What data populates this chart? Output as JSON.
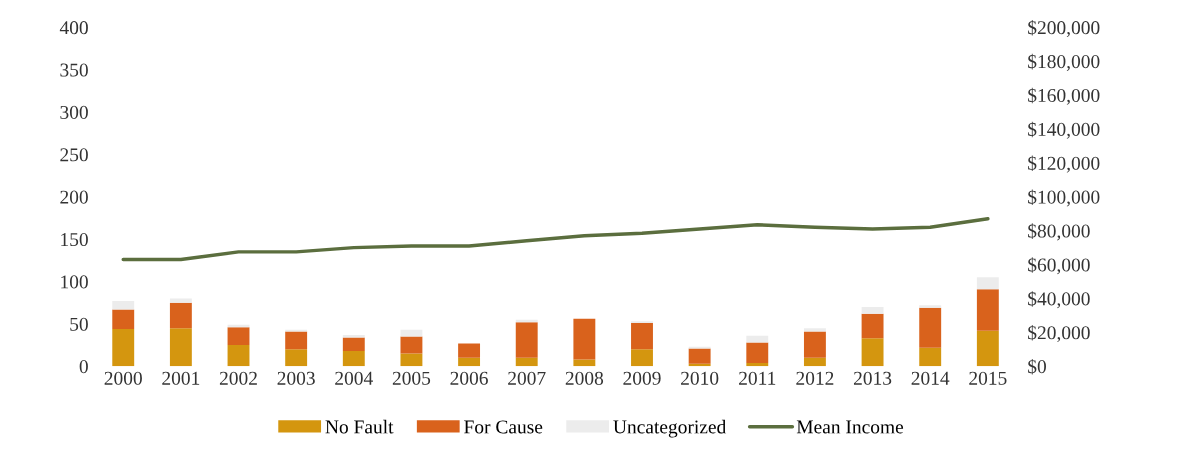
{
  "chart_data": {
    "type": "bar",
    "stacked": true,
    "categories": [
      "2000",
      "2001",
      "2002",
      "2003",
      "2004",
      "2005",
      "2006",
      "2007",
      "2008",
      "2009",
      "2010",
      "2011",
      "2012",
      "2013",
      "2014",
      "2015"
    ],
    "series": [
      {
        "name": "No Fault",
        "color": "#d4960f",
        "values": [
          44,
          45,
          25,
          20,
          18,
          15,
          10,
          10,
          8,
          20,
          3,
          4,
          10,
          33,
          22,
          42
        ]
      },
      {
        "name": "For Cause",
        "color": "#d9621c",
        "values": [
          23,
          30,
          21,
          21,
          16,
          20,
          17,
          42,
          48,
          31,
          18,
          24,
          31,
          29,
          47,
          49
        ]
      },
      {
        "name": "Uncategorized",
        "color": "#ececec",
        "values": [
          10,
          5,
          3,
          2,
          3,
          8,
          null,
          3,
          null,
          2,
          2,
          8,
          4,
          8,
          3,
          14
        ]
      },
      {
        "name": "Mean Income",
        "type": "line",
        "axis": "y2",
        "color": "#5b6e3e",
        "values": [
          63000,
          63000,
          67500,
          67500,
          70000,
          71000,
          71000,
          74000,
          77000,
          78500,
          81000,
          83500,
          82000,
          81000,
          82000,
          87000
        ]
      }
    ],
    "ylim": [
      0,
      400
    ],
    "yticks": [
      0,
      50,
      100,
      150,
      200,
      250,
      300,
      350,
      400
    ],
    "y2lim": [
      0,
      200000
    ],
    "y2ticks": [
      {
        "value": 0,
        "label": "$0"
      },
      {
        "value": 20000,
        "label": "$20,000"
      },
      {
        "value": 40000,
        "label": "$40,000"
      },
      {
        "value": 60000,
        "label": "$60,000"
      },
      {
        "value": 80000,
        "label": "$80,000"
      },
      {
        "value": 100000,
        "label": "$100,000"
      },
      {
        "value": 120000,
        "label": "$120,000"
      },
      {
        "value": 140000,
        "label": "$140,000"
      },
      {
        "value": 160000,
        "label": "$160,000"
      },
      {
        "value": 180000,
        "label": "$180,000"
      },
      {
        "value": 200000,
        "label": "$200,000"
      }
    ],
    "legend": "bottom"
  }
}
